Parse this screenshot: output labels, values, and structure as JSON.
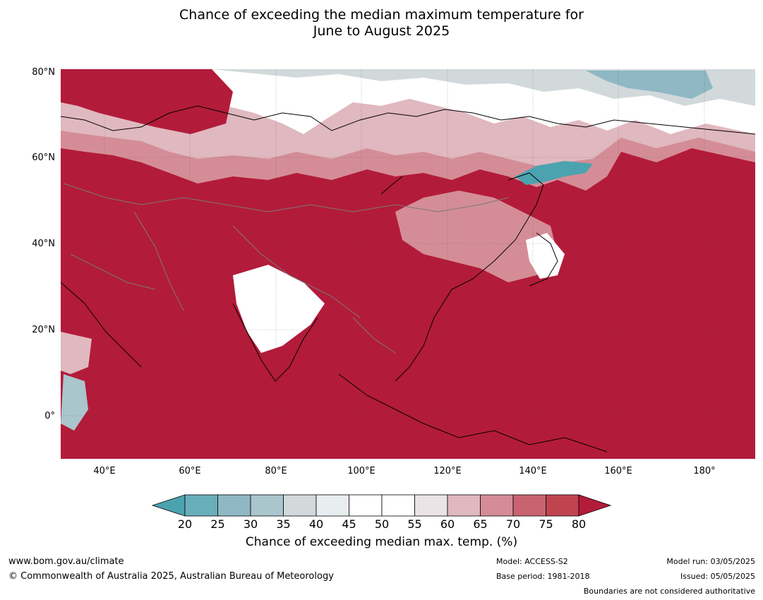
{
  "title": {
    "line1": "Chance of exceeding the median maximum temperature for",
    "line2": "June to August 2025"
  },
  "map": {
    "lat_labels": [
      "80°N",
      "60°N",
      "40°N",
      "20°N",
      "0°"
    ],
    "lon_labels": [
      "40°E",
      "60°E",
      "80°E",
      "100°E",
      "120°E",
      "140°E",
      "160°E",
      "180°"
    ],
    "colors": {
      "p20": "#4ba3b0",
      "p25": "#6aaebb",
      "p30": "#8fb8c4",
      "p35": "#aac5cc",
      "p40": "#d2d9db",
      "p45": "#e8eef0",
      "p50": "#ffffff",
      "p55": "#ffffff",
      "p60": "#ebe4e6",
      "p65": "#e0b8bf",
      "p70": "#d48d96",
      "p75": "#c9636f",
      "p80": "#c04450",
      "p80plus": "#b31b3a",
      "coast": "#000000",
      "border": "#7a7a7a"
    }
  },
  "colorbar": {
    "ticks": [
      "20",
      "25",
      "30",
      "35",
      "40",
      "45",
      "50",
      "55",
      "60",
      "65",
      "70",
      "75",
      "80"
    ],
    "title": "Chance of exceeding median max. temp. (%)"
  },
  "footer": {
    "url": "www.bom.gov.au/climate",
    "copyright": "© Commonwealth of Australia 2025, Australian Bureau of Meteorology",
    "model": "Model: ACCESS-S2",
    "base_period": "Base period: 1981-2018",
    "model_run": "Model run: 03/05/2025",
    "issued": "Issued: 05/05/2025",
    "disclaimer": "Boundaries are not considered authoritative"
  }
}
